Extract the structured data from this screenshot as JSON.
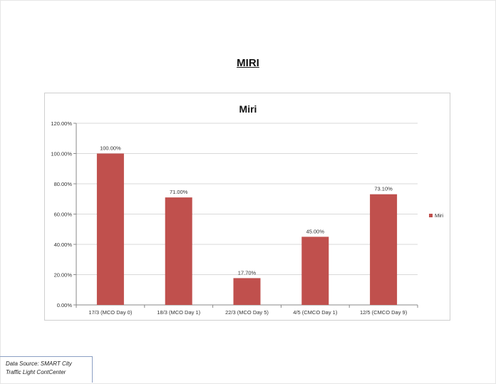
{
  "page": {
    "heading": "MIRI"
  },
  "footer": {
    "source_line1": "Data Source: SMART City",
    "source_line2": "Traffic Light ContCenter"
  },
  "colors": {
    "bar": "#c0504d",
    "grid": "#d9d9d9",
    "axis": "#888888"
  },
  "chart_data": {
    "type": "bar",
    "title": "Miri",
    "categories": [
      "17/3 (MCO Day 0)",
      "18/3 (MCO Day 1)",
      "22/3 (MCO Day 5)",
      "4/5 (CMCO Day 1)",
      "12/5 (CMCO Day 9)"
    ],
    "series": [
      {
        "name": "Miri",
        "values": [
          100.0,
          71.0,
          17.7,
          45.0,
          73.1
        ],
        "labels": [
          "100.00%",
          "71.00%",
          "17.70%",
          "45.00%",
          "73.10%"
        ]
      }
    ],
    "y_ticks": [
      "0.00%",
      "20.00%",
      "40.00%",
      "60.00%",
      "80.00%",
      "100.00%",
      "120.00%"
    ],
    "ylim": [
      0,
      120
    ],
    "grid": true,
    "legend_position": "right"
  }
}
